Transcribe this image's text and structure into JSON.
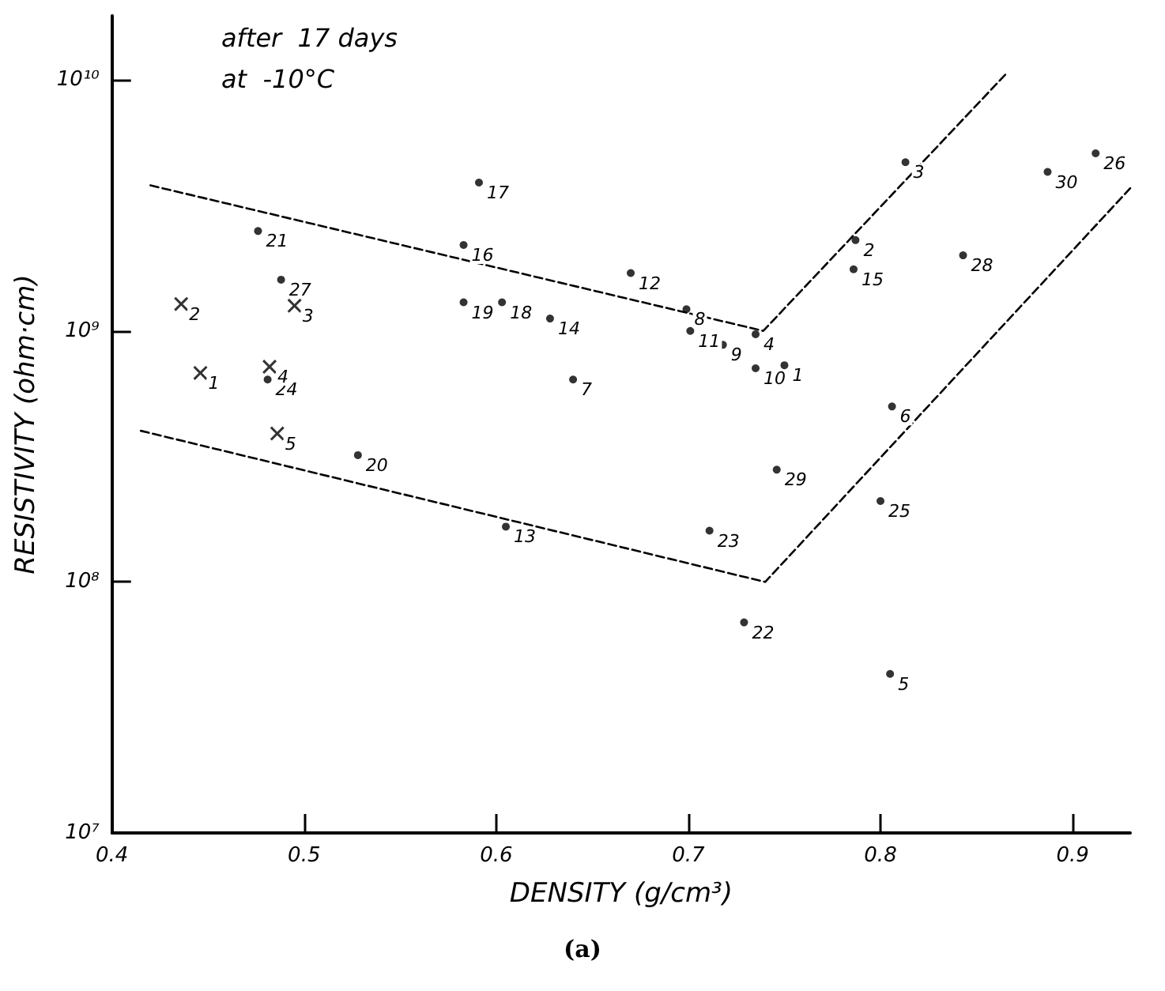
{
  "chart_data": {
    "type": "scatter",
    "title": "(a)",
    "xlabel": "DENSITY (g/cm³)",
    "ylabel": "RESISTIVITY (ohm·cm)",
    "annotations": [
      "after  17 days",
      "at  -10°C",
      {
        "text": "1",
        "x": 0.446,
        "y": 680000000
      },
      {
        "text": "2",
        "x": 0.436,
        "y": 1280000000
      },
      {
        "text": "3",
        "x": 0.495,
        "y": 1260000000
      },
      {
        "text": "4",
        "x": 0.482,
        "y": 720000000
      },
      {
        "text": "5",
        "x": 0.486,
        "y": 390000000
      },
      {
        "text": "1",
        "x": 0.75,
        "y": 730000000
      },
      {
        "text": "2",
        "x": 0.787,
        "y": 2300000000
      },
      {
        "text": "3",
        "x": 0.813,
        "y": 4700000000
      },
      {
        "text": "4",
        "x": 0.735,
        "y": 970000000
      },
      {
        "text": "5",
        "x": 0.805,
        "y": 43000000
      },
      {
        "text": "6",
        "x": 0.806,
        "y": 500000000
      },
      {
        "text": "7",
        "x": 0.64,
        "y": 640000000
      },
      {
        "text": "8",
        "x": 0.699,
        "y": 1220000000
      },
      {
        "text": "9",
        "x": 0.718,
        "y": 880000000
      },
      {
        "text": "10",
        "x": 0.735,
        "y": 710000000
      },
      {
        "text": "11",
        "x": 0.701,
        "y": 1000000000
      },
      {
        "text": "12",
        "x": 0.67,
        "y": 1700000000
      },
      {
        "text": "13",
        "x": 0.605,
        "y": 166000000
      },
      {
        "text": "14",
        "x": 0.628,
        "y": 1120000000
      },
      {
        "text": "15",
        "x": 0.786,
        "y": 1760000000
      },
      {
        "text": "16",
        "x": 0.583,
        "y": 2200000000
      },
      {
        "text": "17",
        "x": 0.591,
        "y": 3900000000
      },
      {
        "text": "18",
        "x": 0.603,
        "y": 1300000000
      },
      {
        "text": "19",
        "x": 0.583,
        "y": 1300000000
      },
      {
        "text": "20",
        "x": 0.528,
        "y": 320000000
      },
      {
        "text": "21",
        "x": 0.476,
        "y": 2500000000
      },
      {
        "text": "22",
        "x": 0.729,
        "y": 69000000
      },
      {
        "text": "23",
        "x": 0.711,
        "y": 160000000
      },
      {
        "text": "24",
        "x": 0.481,
        "y": 640000000
      },
      {
        "text": "25",
        "x": 0.8,
        "y": 210000000
      },
      {
        "text": "26",
        "x": 0.912,
        "y": 5100000000
      },
      {
        "text": "27",
        "x": 0.488,
        "y": 1600000000
      },
      {
        "text": "28",
        "x": 0.843,
        "y": 2000000000
      },
      {
        "text": "29",
        "x": 0.746,
        "y": 280000000
      },
      {
        "text": "30",
        "x": 0.887,
        "y": 4300000000
      }
    ],
    "xlim": [
      0.4,
      0.93
    ],
    "xticks": [
      0.4,
      0.5,
      0.6,
      0.7,
      0.8,
      0.9
    ],
    "ylim": [
      10000000,
      18000000000
    ],
    "log": "y",
    "yticks": [
      {
        "value": 10000000,
        "label": "10⁷"
      },
      {
        "value": 100000000,
        "label": "10⁸"
      },
      {
        "value": 1000000000,
        "label": "10⁹"
      },
      {
        "value": 10000000000,
        "label": "10¹⁰"
      }
    ],
    "grid": false,
    "series": [
      {
        "marker": "cross",
        "color": "#000000",
        "x": [
          0.446,
          0.436,
          0.495,
          0.482,
          0.486
        ],
        "values": [
          680000000,
          1280000000,
          1260000000,
          720000000,
          390000000
        ]
      },
      {
        "marker": "circle",
        "color": "#000000",
        "x": [
          0.75,
          0.787,
          0.813,
          0.735,
          0.805,
          0.806,
          0.64,
          0.699,
          0.718,
          0.735,
          0.701,
          0.67,
          0.605,
          0.628,
          0.786,
          0.583,
          0.591,
          0.603,
          0.583,
          0.528,
          0.476,
          0.729,
          0.711,
          0.481,
          0.8,
          0.912,
          0.488,
          0.843,
          0.746,
          0.887
        ],
        "values": [
          730000000,
          2300000000,
          4700000000,
          970000000,
          43000000,
          500000000,
          640000000,
          1220000000,
          880000000,
          710000000,
          1000000000,
          1700000000,
          166000000,
          1120000000,
          1760000000,
          2200000000,
          3900000000,
          1300000000,
          1300000000,
          320000000,
          2500000000,
          69000000,
          160000000,
          640000000,
          210000000,
          5100000000,
          1600000000,
          2000000000,
          280000000,
          4300000000
        ]
      },
      {
        "type": "line",
        "marker": "none",
        "line_style": "dashed",
        "color": "#000000",
        "x": [
          0.42,
          0.739,
          0.865
        ],
        "values": [
          3800000000,
          1000000000,
          10500000000
        ]
      },
      {
        "type": "line",
        "marker": "none",
        "line_style": "dashed",
        "color": "#000000",
        "x": [
          0.415,
          0.74,
          0.93
        ],
        "values": [
          400000000,
          100000000,
          3700000000
        ]
      }
    ]
  }
}
